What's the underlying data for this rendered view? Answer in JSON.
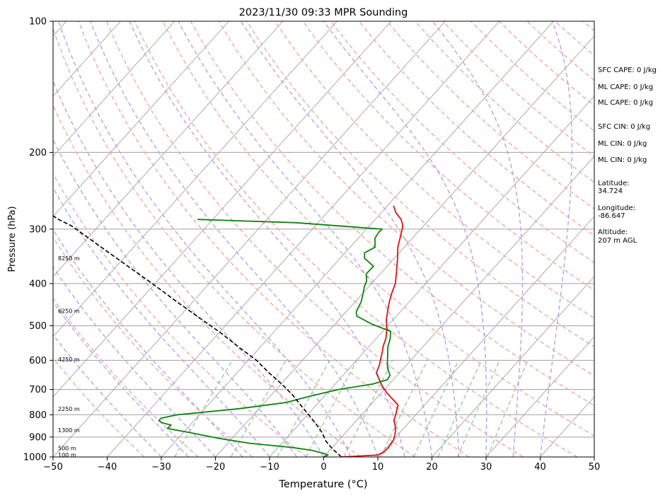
{
  "chart_data": {
    "type": "line",
    "title": "2023/11/30 09:33 MPR Sounding",
    "xlabel": "Temperature (°C)",
    "ylabel": "Pressure (hPa)",
    "xlim": [
      -50,
      50
    ],
    "ylim": [
      1000,
      100
    ],
    "y_scale": "log",
    "skew": "skew-T",
    "grid": true,
    "x_ticks": [
      -50,
      -40,
      -30,
      -20,
      -10,
      0,
      10,
      20,
      30,
      40,
      50
    ],
    "y_ticks": [
      100,
      200,
      300,
      400,
      500,
      600,
      700,
      800,
      900,
      1000
    ],
    "colors": {
      "temperature": "#e01010",
      "dewpoint": "#118011",
      "parcel": "#000000",
      "dry_adiabat": "#f4a6a6",
      "moist_adiabat": "#b0a4f0",
      "mixing_ratio": "#98cc98",
      "isotherm": "#a0a0a0"
    },
    "series": [
      {
        "name": "",
        "role": "temperature",
        "points": [
          [
            3.3,
            1000
          ],
          [
            9.6,
            990
          ],
          [
            10.3,
            975
          ],
          [
            10.4,
            950
          ],
          [
            10.1,
            915
          ],
          [
            9.5,
            890
          ],
          [
            8.9,
            870
          ],
          [
            7.9,
            845
          ],
          [
            6.9,
            825
          ],
          [
            6.3,
            800
          ],
          [
            5.7,
            780
          ],
          [
            5.1,
            760
          ],
          [
            3.4,
            740
          ],
          [
            1.2,
            715
          ],
          [
            -0.8,
            690
          ],
          [
            -2.9,
            660
          ],
          [
            -4.3,
            640
          ],
          [
            -5.0,
            615
          ],
          [
            -5.8,
            595
          ],
          [
            -6.6,
            575
          ],
          [
            -7.5,
            555
          ],
          [
            -8.2,
            535
          ],
          [
            -9.5,
            510
          ],
          [
            -11.2,
            485
          ],
          [
            -12.6,
            460
          ],
          [
            -13.7,
            440
          ],
          [
            -14.7,
            420
          ],
          [
            -15.6,
            400
          ],
          [
            -17.4,
            375
          ],
          [
            -19.4,
            350
          ],
          [
            -21.2,
            330
          ],
          [
            -23.0,
            305
          ],
          [
            -23.8,
            295
          ],
          [
            -25.2,
            285
          ],
          [
            -27.3,
            275
          ],
          [
            -28.9,
            265
          ]
        ]
      },
      {
        "name": "",
        "role": "dewpoint",
        "points": [
          [
            0.0,
            1000
          ],
          [
            0.5,
            990
          ],
          [
            -0.8,
            980
          ],
          [
            -3.4,
            965
          ],
          [
            -7.7,
            950
          ],
          [
            -16.0,
            930
          ],
          [
            -22.8,
            905
          ],
          [
            -28.6,
            880
          ],
          [
            -33.6,
            860
          ],
          [
            -33.5,
            845
          ],
          [
            -35.5,
            835
          ],
          [
            -36.5,
            825
          ],
          [
            -36.5,
            815
          ],
          [
            -34.0,
            800
          ],
          [
            -23.7,
            775
          ],
          [
            -16.0,
            750
          ],
          [
            -12.6,
            725
          ],
          [
            -8.5,
            700
          ],
          [
            -3.0,
            680
          ],
          [
            -1.1,
            665
          ],
          [
            -1.3,
            650
          ],
          [
            -3.0,
            625
          ],
          [
            -4.3,
            600
          ],
          [
            -5.3,
            580
          ],
          [
            -6.4,
            560
          ],
          [
            -7.4,
            535
          ],
          [
            -8.5,
            515
          ],
          [
            -13.3,
            495
          ],
          [
            -17.3,
            475
          ],
          [
            -18.1,
            465
          ],
          [
            -18.9,
            440
          ],
          [
            -20.0,
            420
          ],
          [
            -20.9,
            405
          ],
          [
            -21.3,
            395
          ],
          [
            -22.6,
            380
          ],
          [
            -22.5,
            365
          ],
          [
            -25.5,
            350
          ],
          [
            -26.4,
            340
          ],
          [
            -25.4,
            330
          ],
          [
            -26.9,
            315
          ],
          [
            -27.2,
            305
          ],
          [
            -27.1,
            300
          ],
          [
            -44.1,
            290
          ],
          [
            -62.8,
            285
          ]
        ]
      },
      {
        "name": "",
        "role": "parcel",
        "points": [
          [
            3.3,
            1000
          ],
          [
            0.4,
            960
          ],
          [
            -2.2,
            920
          ],
          [
            -4.3,
            880
          ],
          [
            -6.9,
            840
          ],
          [
            -9.8,
            800
          ],
          [
            -12.9,
            760
          ],
          [
            -16.1,
            720
          ],
          [
            -19.9,
            680
          ],
          [
            -24.2,
            640
          ],
          [
            -28.5,
            600
          ],
          [
            -33.9,
            560
          ],
          [
            -39.5,
            520
          ],
          [
            -46.0,
            480
          ],
          [
            -53.0,
            440
          ],
          [
            -60.5,
            400
          ],
          [
            -69.0,
            360
          ],
          [
            -76.0,
            330
          ],
          [
            -81.0,
            310
          ],
          [
            -85.0,
            295
          ],
          [
            -88.5,
            285
          ],
          [
            -90.0,
            280
          ],
          [
            -91.5,
            275
          ],
          [
            -93.0,
            270
          ]
        ]
      }
    ],
    "height_markers": [
      {
        "label": "100 m",
        "p": 989
      },
      {
        "label": "500 m",
        "p": 955
      },
      {
        "label": "1300 m",
        "p": 868
      },
      {
        "label": "2250 m",
        "p": 775
      },
      {
        "label": "4250 m",
        "p": 597
      },
      {
        "label": "6250 m",
        "p": 462
      },
      {
        "label": "8250 m",
        "p": 350
      }
    ],
    "annotations": [
      "SFC CAPE: 0 J/kg",
      "ML CAPE: 0 J/kg",
      "ML CAPE: 0 J/kg",
      "SFC CIN: 0 J/kg",
      "ML CIN: 0 J/kg",
      "ML CIN: 0 J/kg",
      "Latitude:",
      "34.724",
      "Longitude:",
      "-86.647",
      "Altitude:",
      "207 m AGL"
    ]
  }
}
